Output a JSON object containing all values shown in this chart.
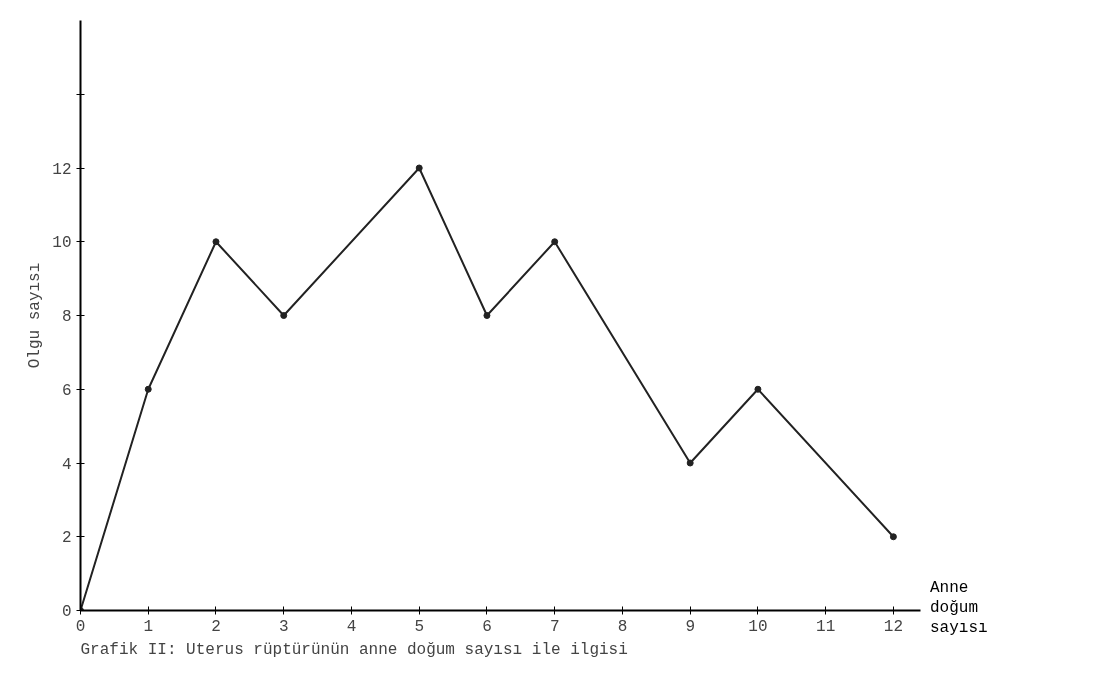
{
  "chart_data": {
    "type": "line",
    "title": "Grafik II: Uterus rüptürünün anne doğum sayısı ile ilgisi",
    "xlabel": "Anne doğum sayısı",
    "ylabel": "Olgu sayısı",
    "x": [
      0,
      1,
      2,
      3,
      5,
      6,
      7,
      9,
      10,
      12
    ],
    "series": [
      {
        "color": "#222222",
        "values": [
          0,
          6,
          10,
          8,
          12,
          8,
          10,
          4,
          6,
          2
        ]
      }
    ],
    "xlim": [
      0,
      12.4
    ],
    "xticks": [
      0,
      1,
      2,
      3,
      4,
      5,
      6,
      7,
      8,
      9,
      10,
      11,
      12
    ],
    "ylim": [
      0,
      16
    ],
    "yticks": [
      0,
      2,
      4,
      6,
      8,
      10,
      12,
      {
        "value": 14,
        "label": null
      }
    ],
    "grid": false,
    "marker": "circle",
    "line_style": "solid"
  }
}
